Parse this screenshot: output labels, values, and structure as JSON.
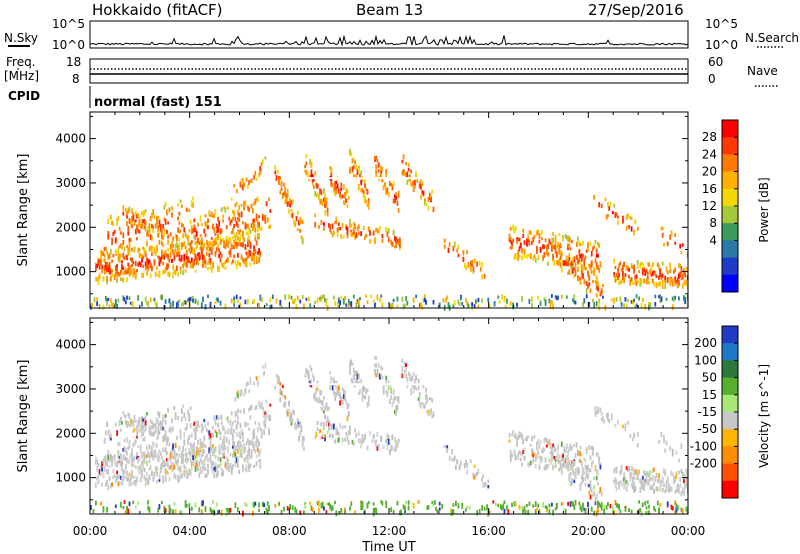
{
  "header": {
    "station": "Hokkaido (fitACF)",
    "beam": "Beam 13",
    "date": "27/Sep/2016"
  },
  "top_strip": {
    "nsky_label": "N.Sky",
    "nsearch_label": "N.Search",
    "nsky_ticks": [
      "10^5",
      "10^0"
    ],
    "nsearch_ticks": [
      "10^5",
      "10^0"
    ],
    "freq_label": "Freq.",
    "freq_unit": "[MHz]",
    "freq_ticks": [
      "18",
      "8"
    ],
    "nave_label": "Nave",
    "nave_ticks": [
      "60",
      "0"
    ],
    "cpid_label": "CPID",
    "cpid_value": "normal (fast) 151"
  },
  "chart_data": [
    {
      "type": "heatmap",
      "name": "power-panel",
      "ylabel": "Slant Range [km]",
      "ylim": [
        180,
        4600
      ],
      "yticks": [
        1000,
        2000,
        3000,
        4000
      ],
      "xlim": [
        0,
        24
      ],
      "colorbar": {
        "label": "Power [dB]",
        "ticks": [
          "28",
          "24",
          "20",
          "16",
          "12",
          "8",
          "4"
        ],
        "colors": [
          "#ff0000",
          "#ff3a00",
          "#ff7a00",
          "#ffb000",
          "#f0d800",
          "#a8c83c",
          "#3c9a5a",
          "#2a7aa8",
          "#1e3cc8",
          "#0000ff"
        ]
      }
    },
    {
      "type": "heatmap",
      "name": "velocity-panel",
      "ylabel": "Slant Range [km]",
      "ylim": [
        180,
        4600
      ],
      "yticks": [
        1000,
        2000,
        3000,
        4000
      ],
      "xlim": [
        0,
        24
      ],
      "colorbar": {
        "label": "Velocity [m s^-1]",
        "ticks": [
          "200",
          "100",
          "50",
          "15",
          "-15",
          "-50",
          "-100",
          "-200"
        ],
        "colors": [
          "#1e3cc8",
          "#1e78c8",
          "#2a7a3c",
          "#55b030",
          "#a8e878",
          "#c8c8c8",
          "#ffb400",
          "#ff8c00",
          "#ff5000",
          "#ff0000"
        ]
      }
    }
  ],
  "xaxis": {
    "label": "Time UT",
    "ticks": [
      "00:00",
      "04:00",
      "08:00",
      "12:00",
      "16:00",
      "20:00",
      "00:00"
    ]
  }
}
